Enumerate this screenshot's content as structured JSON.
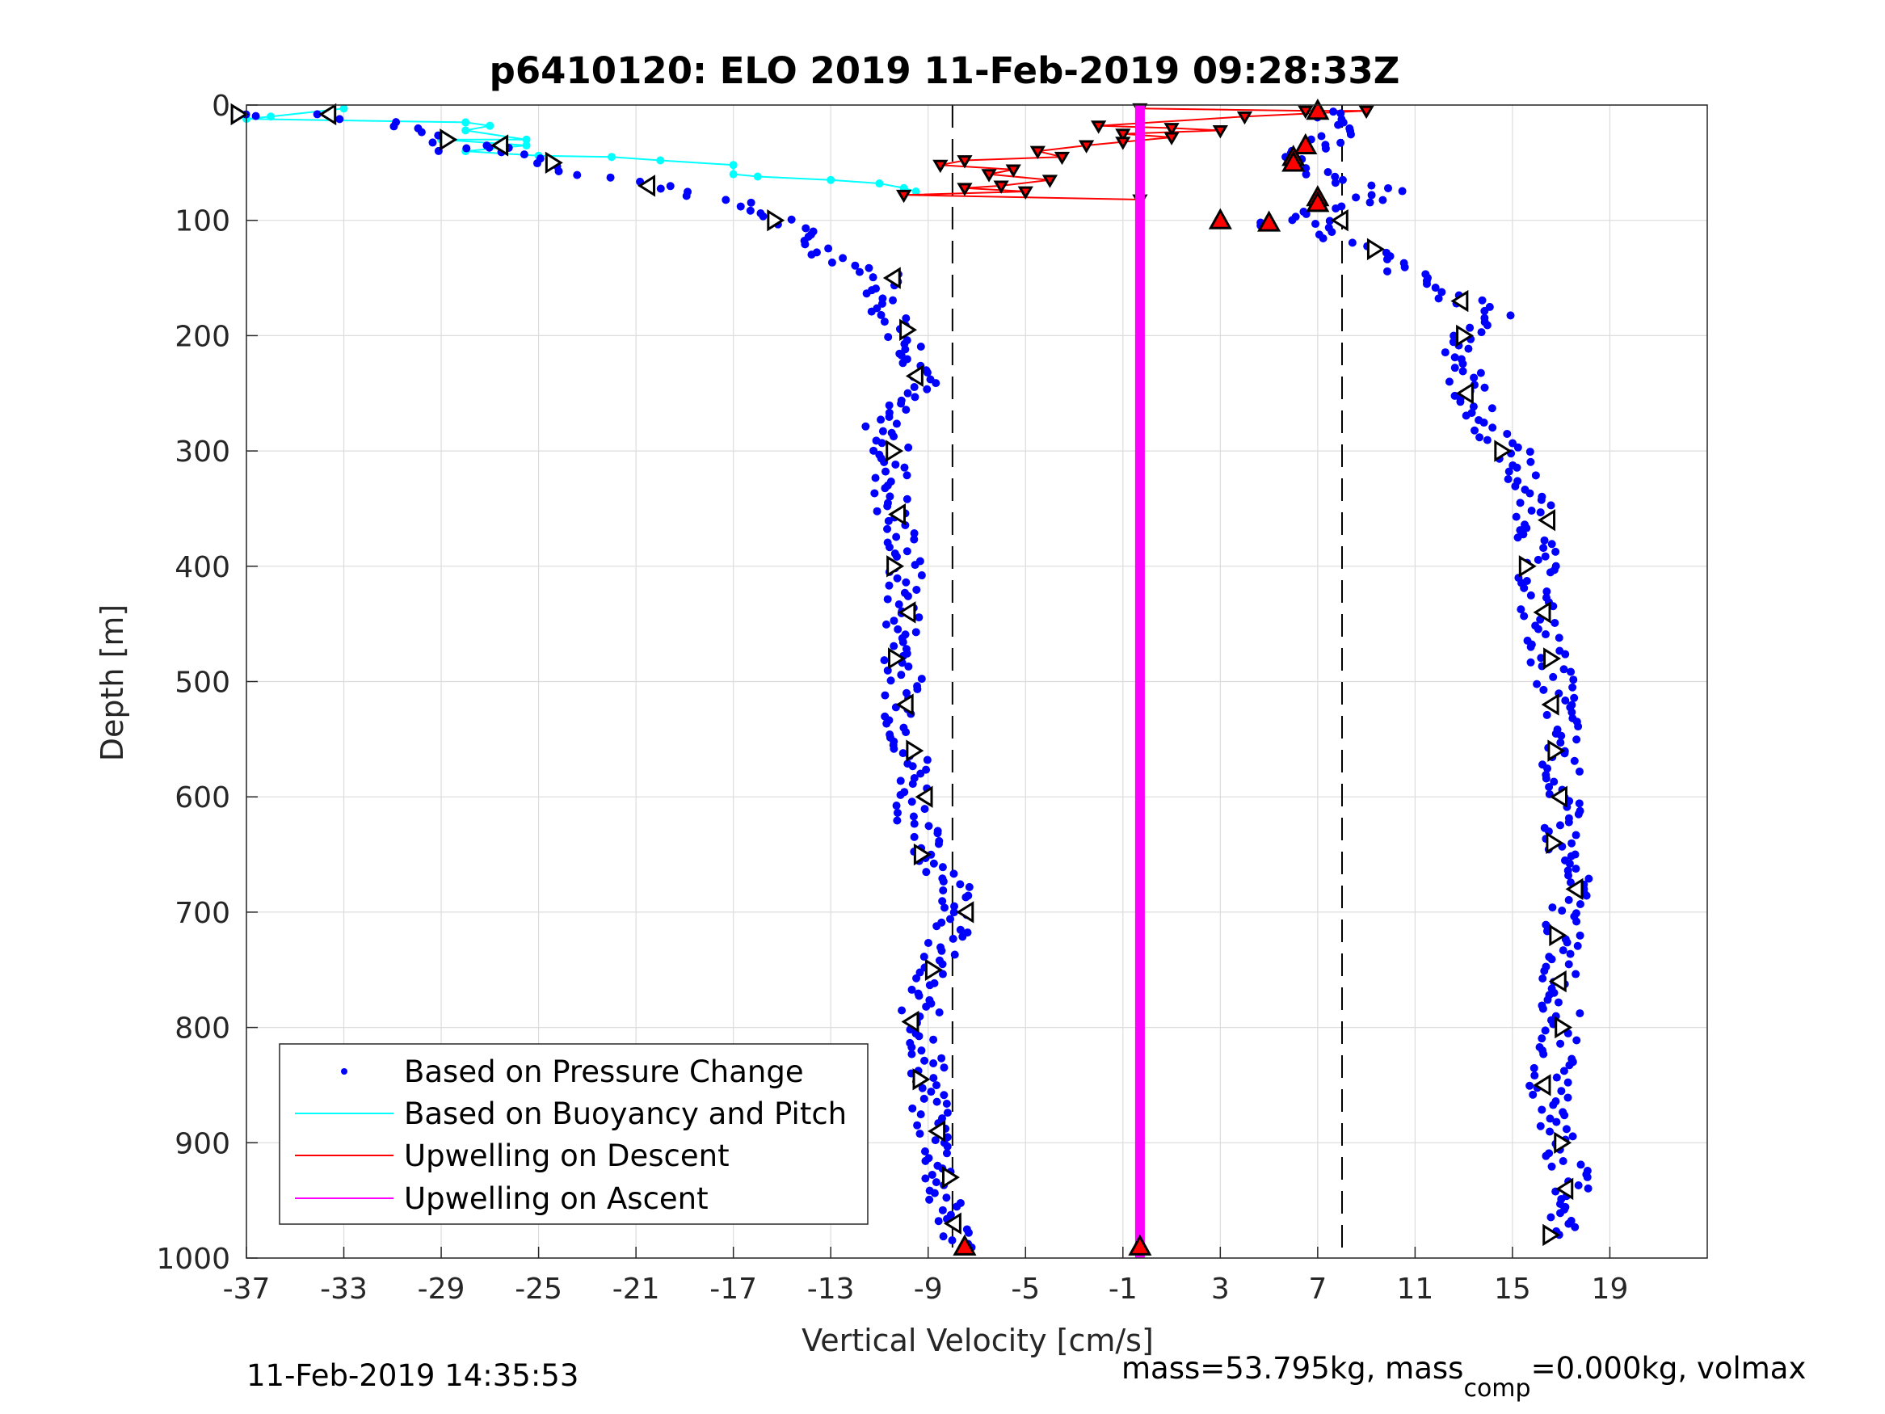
{
  "chart_data": {
    "type": "scatter",
    "title": "p6410120: ELO 2019 11-Feb-2019 09:28:33Z",
    "xlabel": "Vertical Velocity [cm/s]",
    "ylabel": "Depth [m]",
    "xlim": [
      -37,
      23
    ],
    "ylim": [
      0,
      1000
    ],
    "y_reversed": true,
    "xticks": [
      -37,
      -33,
      -29,
      -25,
      -21,
      -17,
      -13,
      -9,
      -5,
      -1,
      3,
      7,
      11,
      15,
      19
    ],
    "yticks": [
      0,
      100,
      200,
      300,
      400,
      500,
      600,
      700,
      800,
      900,
      1000
    ],
    "grid": true,
    "legend_position": "bottom-left",
    "reference_lines": {
      "style": "dashed",
      "color": "#000000",
      "x": [
        -8,
        8
      ]
    },
    "colors": {
      "pressure": "#0000ff",
      "buoyancy": "#00ffff",
      "descent": "#ff0000",
      "ascent": "#ff00ff",
      "marker_edge": "#000000"
    },
    "series": [
      {
        "name": "Based on Pressure Change",
        "style": "dots",
        "color": "#0000ff",
        "descent_path": [
          [
            -37,
            8
          ],
          [
            -36,
            10
          ],
          [
            -34,
            8
          ],
          [
            -31,
            15
          ],
          [
            -29,
            30
          ],
          [
            -28.5,
            40
          ],
          [
            -27,
            35
          ],
          [
            -26,
            40
          ],
          [
            -24.5,
            50
          ],
          [
            -23,
            60
          ],
          [
            -20,
            70
          ],
          [
            -17,
            85
          ],
          [
            -15,
            100
          ],
          [
            -13,
            130
          ],
          [
            -10.5,
            150
          ],
          [
            -11,
            170
          ],
          [
            -10,
            195
          ],
          [
            -9.5,
            215
          ],
          [
            -9,
            235
          ],
          [
            -11,
            270
          ],
          [
            -10.5,
            300
          ],
          [
            -10.5,
            330
          ],
          [
            -10.5,
            355
          ],
          [
            -10,
            380
          ],
          [
            -10,
            420
          ],
          [
            -10,
            460
          ],
          [
            -10,
            500
          ],
          [
            -10,
            540
          ],
          [
            -9.5,
            580
          ],
          [
            -9.5,
            620
          ],
          [
            -9,
            650
          ],
          [
            -8,
            670
          ],
          [
            -7.5,
            700
          ],
          [
            -8.5,
            730
          ],
          [
            -9.5,
            770
          ],
          [
            -9,
            820
          ],
          [
            -9,
            870
          ],
          [
            -8.5,
            910
          ],
          [
            -8.5,
            950
          ],
          [
            -7.5,
            990
          ]
        ],
        "ascent_path": [
          [
            8,
            100
          ],
          [
            7,
            110
          ],
          [
            9,
            125
          ],
          [
            11,
            150
          ],
          [
            13,
            170
          ],
          [
            14.5,
            185
          ],
          [
            13,
            200
          ],
          [
            13,
            230
          ],
          [
            13.5,
            270
          ],
          [
            15,
            300
          ],
          [
            15.5,
            330
          ],
          [
            16,
            360
          ],
          [
            16,
            400
          ],
          [
            16,
            440
          ],
          [
            16.5,
            480
          ],
          [
            17,
            520
          ],
          [
            17,
            560
          ],
          [
            17,
            600
          ],
          [
            17,
            640
          ],
          [
            17.5,
            680
          ],
          [
            17,
            720
          ],
          [
            17,
            760
          ],
          [
            17,
            800
          ],
          [
            16.5,
            850
          ],
          [
            17,
            900
          ],
          [
            17.5,
            940
          ],
          [
            17,
            980
          ]
        ],
        "near_surface_ascent": [
          [
            7,
            5
          ],
          [
            9,
            20
          ],
          [
            6,
            40
          ],
          [
            6.5,
            60
          ],
          [
            10.5,
            75
          ],
          [
            7,
            90
          ],
          [
            5,
            105
          ]
        ]
      },
      {
        "name": "Based on Buoyancy and Pitch",
        "style": "line",
        "color": "#00ffff",
        "points": [
          [
            -33,
            3
          ],
          [
            -36,
            10
          ],
          [
            -37,
            12
          ],
          [
            -28,
            15
          ],
          [
            -27,
            18
          ],
          [
            -28,
            22
          ],
          [
            -25.5,
            30
          ],
          [
            -29,
            30
          ],
          [
            -25.5,
            35
          ],
          [
            -28,
            40
          ],
          [
            -25,
            44
          ],
          [
            -22,
            45
          ],
          [
            -20,
            48
          ],
          [
            -17,
            52
          ],
          [
            -17,
            60
          ],
          [
            -16,
            62
          ],
          [
            -13,
            65
          ],
          [
            -11,
            68
          ],
          [
            -10,
            72
          ],
          [
            -9.5,
            75
          ]
        ]
      },
      {
        "name": "Upwelling on Descent",
        "style": "line",
        "color": "#ff0000",
        "points": [
          [
            -0.3,
            3
          ],
          [
            6.5,
            5
          ],
          [
            9,
            5
          ],
          [
            4,
            10
          ],
          [
            -2,
            18
          ],
          [
            1,
            20
          ],
          [
            3,
            22
          ],
          [
            -1,
            25
          ],
          [
            1,
            28
          ],
          [
            -1,
            32
          ],
          [
            -2.5,
            35
          ],
          [
            -4.5,
            40
          ],
          [
            -3.5,
            45
          ],
          [
            -7.5,
            48
          ],
          [
            -8.5,
            52
          ],
          [
            -5.5,
            56
          ],
          [
            -6.5,
            60
          ],
          [
            -4,
            65
          ],
          [
            -6,
            70
          ],
          [
            -7.5,
            72
          ],
          [
            -5,
            75
          ],
          [
            -10,
            78
          ],
          [
            -0.3,
            82
          ]
        ]
      },
      {
        "name": "Upwelling on Ascent",
        "style": "thick-line",
        "color": "#ff00ff",
        "points": [
          [
            -0.3,
            0
          ],
          [
            -0.3,
            1000
          ]
        ]
      }
    ],
    "ascent_triangles_red": [
      [
        7,
        5
      ],
      [
        6.5,
        35
      ],
      [
        6,
        45
      ],
      [
        6,
        50
      ],
      [
        7,
        80
      ],
      [
        7,
        85
      ],
      [
        3,
        100
      ],
      [
        5,
        102
      ],
      [
        -7.5,
        990
      ],
      [
        -0.3,
        990
      ]
    ]
  },
  "footer": {
    "timestamp": "11-Feb-2019 14:35:53",
    "mass_text_a": "mass=53.795kg, mass",
    "mass_sub": "comp",
    "mass_text_b": "=0.000kg, volmax"
  }
}
